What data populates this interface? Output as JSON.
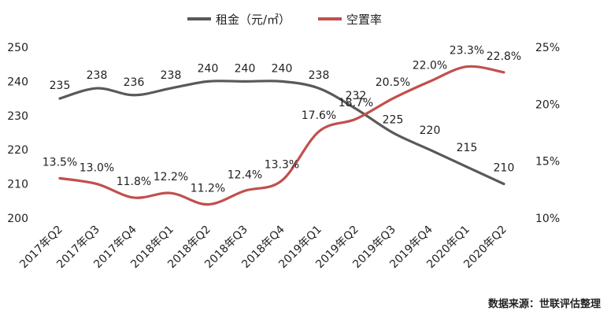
{
  "chart_data": {
    "type": "line",
    "categories": [
      "2017年Q2",
      "2017年Q3",
      "2017年Q4",
      "2018年Q1",
      "2018年Q2",
      "2018年Q3",
      "2018年Q4",
      "2019年Q1",
      "2019年Q2",
      "2019年Q3",
      "2019年Q4",
      "2020年Q1",
      "2020年Q2"
    ],
    "series": [
      {
        "name": "租金（元/㎡）",
        "axis": "left",
        "color": "#595959",
        "values": [
          235,
          238,
          236,
          238,
          240,
          240,
          240,
          238,
          232,
          225,
          220,
          215,
          210
        ],
        "labels": [
          "235",
          "238",
          "236",
          "238",
          "240",
          "240",
          "240",
          "238",
          "232",
          "225",
          "220",
          "215",
          "210"
        ]
      },
      {
        "name": "空置率",
        "axis": "right",
        "color": "#c0504d",
        "values": [
          13.5,
          13.0,
          11.8,
          12.2,
          11.2,
          12.4,
          13.3,
          17.6,
          18.7,
          20.5,
          22.0,
          23.3,
          22.8
        ],
        "labels": [
          "13.5%",
          "13.0%",
          "11.8%",
          "12.2%",
          "11.2%",
          "12.4%",
          "13.3%",
          "17.6%",
          "18.7%",
          "20.5%",
          "22.0%",
          "23.3%",
          "22.8%"
        ]
      }
    ],
    "y_left": {
      "range": [
        200,
        250
      ],
      "ticks": [
        "200",
        "210",
        "220",
        "230",
        "240",
        "250"
      ],
      "tick_values": [
        200,
        210,
        220,
        230,
        240,
        250
      ]
    },
    "y_right": {
      "range": [
        10,
        25
      ],
      "ticks": [
        "10%",
        "15%",
        "20%",
        "25%"
      ],
      "tick_values": [
        10,
        15,
        20,
        25
      ]
    },
    "grid": false,
    "legend_position": "top-center"
  },
  "source_note": "数据来源：世联评估整理"
}
